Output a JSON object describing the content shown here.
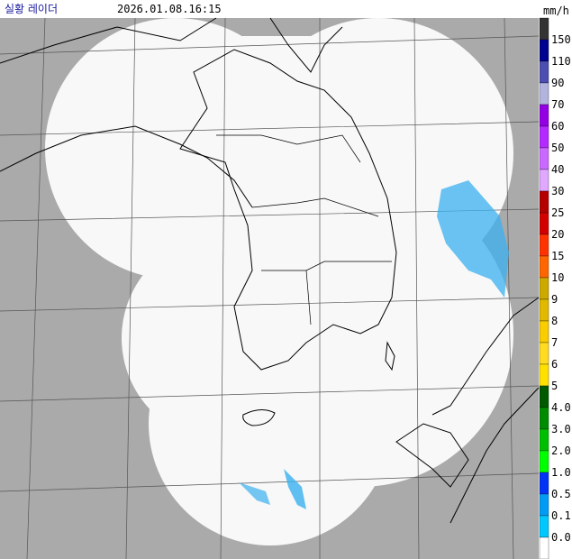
{
  "header": {
    "title": "실황 레이더",
    "timestamp": "2026.01.08.16:15"
  },
  "legend": {
    "unit": "mm/h",
    "items": [
      {
        "label": "150",
        "color": "#333333"
      },
      {
        "label": "110",
        "color": "#000390"
      },
      {
        "label": "90",
        "color": "#4c4eb1"
      },
      {
        "label": "70",
        "color": "#b3b4de"
      },
      {
        "label": "60",
        "color": "#9300e4"
      },
      {
        "label": "50",
        "color": "#b329ff"
      },
      {
        "label": "40",
        "color": "#c969ff"
      },
      {
        "label": "30",
        "color": "#e0a9ff"
      },
      {
        "label": "25",
        "color": "#b40000"
      },
      {
        "label": "20",
        "color": "#d20000"
      },
      {
        "label": "15",
        "color": "#ff3300"
      },
      {
        "label": "10",
        "color": "#ff6600"
      },
      {
        "label": "9",
        "color": "#ccaa00"
      },
      {
        "label": "8",
        "color": "#e0b900"
      },
      {
        "label": "7",
        "color": "#f9cd00"
      },
      {
        "label": "6",
        "color": "#ffdc1f"
      },
      {
        "label": "5",
        "color": "#ffe100"
      },
      {
        "label": "4.0",
        "color": "#005a00"
      },
      {
        "label": "3.0",
        "color": "#008c00"
      },
      {
        "label": "2.0",
        "color": "#00be00"
      },
      {
        "label": "1.0",
        "color": "#00ff00"
      },
      {
        "label": "0.5",
        "color": "#0033f5"
      },
      {
        "label": "0.1",
        "color": "#009bf5"
      },
      {
        "label": "0.0",
        "color": "#00c8ff"
      }
    ]
  }
}
